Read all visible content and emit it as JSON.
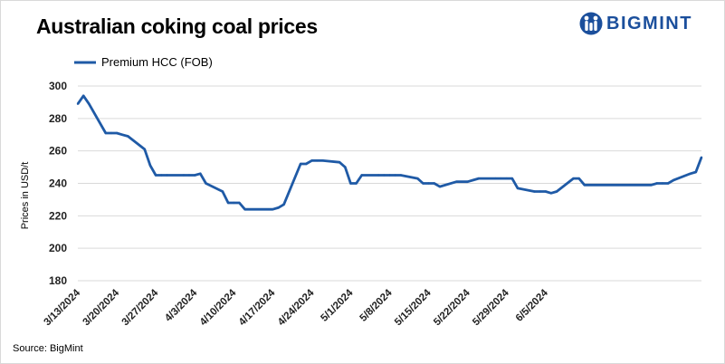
{
  "title": "Australian coking coal prices",
  "brand": {
    "name": "BIGMINT",
    "color": "#1b4f9c"
  },
  "source": "Source: BigMint",
  "chart_data": {
    "type": "line",
    "title": "Australian coking coal prices",
    "ylabel": "Prices in USD/t",
    "xlabel": "",
    "ylim": [
      180,
      300
    ],
    "yticks": [
      180,
      200,
      220,
      240,
      260,
      280,
      300
    ],
    "grid": true,
    "legend_position": "top-left",
    "xtick_labels": [
      "3/13/2024",
      "3/20/2024",
      "3/27/2024",
      "4/3/2024",
      "4/10/2024",
      "4/17/2024",
      "4/24/2024",
      "5/1/2024",
      "5/8/2024",
      "5/15/2024",
      "5/22/2024",
      "5/29/2024",
      "6/5/2024"
    ],
    "series": [
      {
        "name": "Premium HCC (FOB)",
        "color": "#1f5aa6",
        "points": [
          [
            "3/13/2024",
            289
          ],
          [
            "3/14/2024",
            294
          ],
          [
            "3/15/2024",
            289
          ],
          [
            "3/18/2024",
            271
          ],
          [
            "3/19/2024",
            271
          ],
          [
            "3/20/2024",
            271
          ],
          [
            "3/21/2024",
            270
          ],
          [
            "3/22/2024",
            269
          ],
          [
            "3/25/2024",
            261
          ],
          [
            "3/26/2024",
            251
          ],
          [
            "3/27/2024",
            245
          ],
          [
            "3/28/2024",
            245
          ],
          [
            "3/29/2024",
            245
          ],
          [
            "4/1/2024",
            245
          ],
          [
            "4/2/2024",
            245
          ],
          [
            "4/3/2024",
            245
          ],
          [
            "4/4/2024",
            246
          ],
          [
            "4/5/2024",
            240
          ],
          [
            "4/8/2024",
            235
          ],
          [
            "4/9/2024",
            228
          ],
          [
            "4/10/2024",
            228
          ],
          [
            "4/11/2024",
            228
          ],
          [
            "4/12/2024",
            224
          ],
          [
            "4/15/2024",
            224
          ],
          [
            "4/16/2024",
            224
          ],
          [
            "4/17/2024",
            224
          ],
          [
            "4/18/2024",
            225
          ],
          [
            "4/19/2024",
            227
          ],
          [
            "4/22/2024",
            252
          ],
          [
            "4/23/2024",
            252
          ],
          [
            "4/24/2024",
            254
          ],
          [
            "4/25/2024",
            254
          ],
          [
            "4/26/2024",
            254
          ],
          [
            "4/29/2024",
            253
          ],
          [
            "4/30/2024",
            250
          ],
          [
            "5/1/2024",
            240
          ],
          [
            "5/2/2024",
            240
          ],
          [
            "5/3/2024",
            245
          ],
          [
            "5/6/2024",
            245
          ],
          [
            "5/7/2024",
            245
          ],
          [
            "5/8/2024",
            245
          ],
          [
            "5/9/2024",
            245
          ],
          [
            "5/10/2024",
            245
          ],
          [
            "5/13/2024",
            243
          ],
          [
            "5/14/2024",
            240
          ],
          [
            "5/15/2024",
            240
          ],
          [
            "5/16/2024",
            240
          ],
          [
            "5/17/2024",
            238
          ],
          [
            "5/20/2024",
            241
          ],
          [
            "5/21/2024",
            241
          ],
          [
            "5/22/2024",
            241
          ],
          [
            "5/23/2024",
            242
          ],
          [
            "5/24/2024",
            243
          ],
          [
            "5/27/2024",
            243
          ],
          [
            "5/28/2024",
            243
          ],
          [
            "5/29/2024",
            243
          ],
          [
            "5/30/2024",
            243
          ],
          [
            "5/31/2024",
            237
          ],
          [
            "6/3/2024",
            235
          ],
          [
            "6/4/2024",
            235
          ],
          [
            "6/5/2024",
            235
          ],
          [
            "6/6/2024",
            234
          ],
          [
            "6/7/2024",
            235
          ],
          [
            "6/10/2024",
            243
          ],
          [
            "6/11/2024",
            243
          ],
          [
            "6/12/2024",
            239
          ],
          [
            "6/13/2024",
            239
          ],
          [
            "6/14/2024",
            239
          ],
          [
            "6/17/2024",
            239
          ],
          [
            "6/18/2024",
            239
          ],
          [
            "6/19/2024",
            239
          ],
          [
            "6/20/2024",
            239
          ],
          [
            "6/21/2024",
            239
          ],
          [
            "6/24/2024",
            239
          ],
          [
            "6/25/2024",
            240
          ],
          [
            "6/26/2024",
            240
          ],
          [
            "6/27/2024",
            240
          ],
          [
            "6/28/2024",
            242
          ],
          [
            "7/1/2024",
            246
          ],
          [
            "7/2/2024",
            247
          ],
          [
            "7/3/2024",
            256
          ]
        ]
      }
    ]
  }
}
